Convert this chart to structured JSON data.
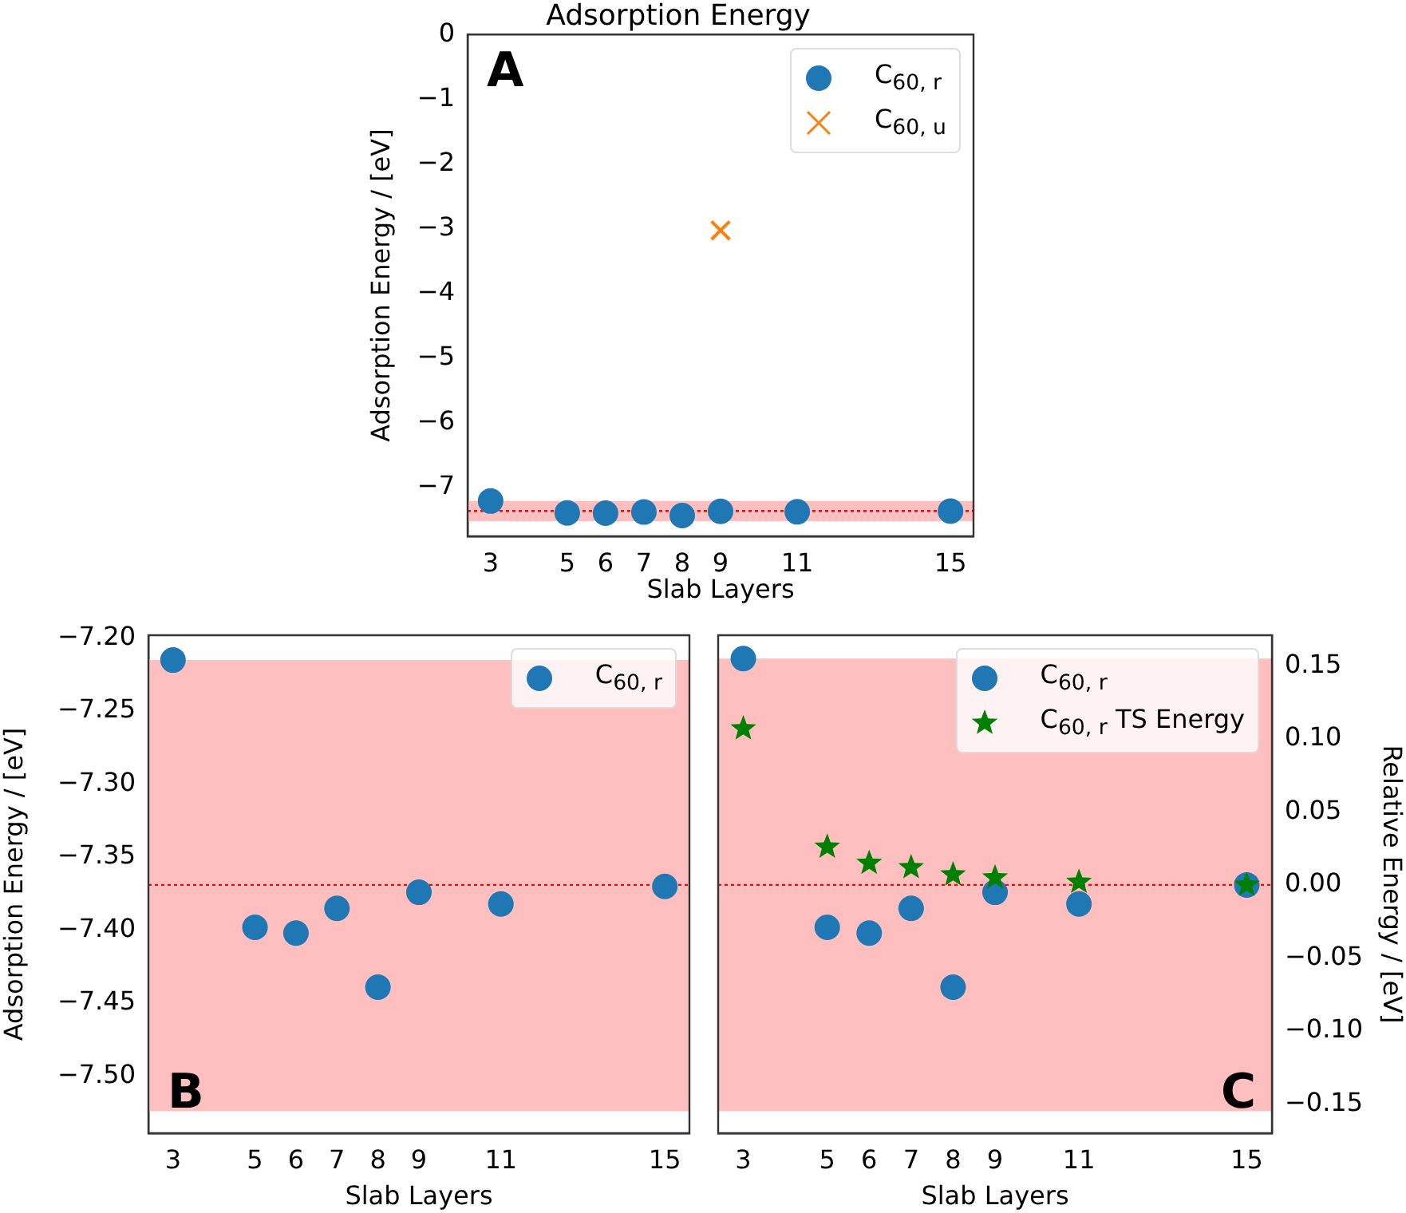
{
  "chart_data": [
    {
      "type": "scatter",
      "title": "Adsorption Energy",
      "xlabel": "Slab Layers",
      "ylabel": "Adsorption Energy / [eV]",
      "annotations": [
        "A"
      ],
      "xlim": [
        2.4,
        15.6
      ],
      "xticks": [
        3,
        5,
        6,
        7,
        8,
        9,
        11,
        15
      ],
      "ylim": [
        -7.76,
        0
      ],
      "yticks": [
        0,
        {
          "value": -1,
          "label": "−1"
        },
        {
          "value": -2,
          "label": "−2"
        },
        {
          "value": -3,
          "label": "−3"
        },
        {
          "value": -4,
          "label": "−4"
        },
        {
          "value": -5,
          "label": "−5"
        },
        {
          "value": -6,
          "label": "−6"
        },
        {
          "value": -7,
          "label": "−7"
        }
      ],
      "series": [
        {
          "name": "C$_{60, r}$",
          "color": "#1f77b4",
          "marker": "circle",
          "x": [
            3,
            5,
            6,
            7,
            8,
            9,
            11,
            15
          ],
          "values": [
            -7.215,
            -7.398,
            -7.402,
            -7.385,
            -7.439,
            -7.374,
            -7.382,
            -7.37
          ]
        },
        {
          "name": "C$_{60, u}$",
          "color": "#ff7f0e",
          "marker": "cross",
          "x": [
            9
          ],
          "values": [
            -3.03
          ]
        }
      ],
      "ref_lines": [
        {
          "axis": "y",
          "value": -7.369,
          "color": "#ff0000",
          "line_style": "dotted"
        }
      ],
      "bands": [
        {
          "axis": "y",
          "from": -7.524,
          "to": -7.215,
          "color": "#ffbfbf"
        }
      ],
      "legend": "top right",
      "grid": false
    },
    {
      "type": "scatter",
      "xlabel": "Slab Layers",
      "ylabel": "Adsorption Energy / [eV]",
      "annotations": [
        "B"
      ],
      "xlim": [
        2.4,
        15.6
      ],
      "xticks": [
        3,
        5,
        6,
        7,
        8,
        9,
        11,
        15
      ],
      "ylim": [
        -7.539,
        -7.198
      ],
      "yticks": [
        {
          "value": -7.2,
          "label": "−7.20"
        },
        {
          "value": -7.25,
          "label": "−7.25"
        },
        {
          "value": -7.3,
          "label": "−7.30"
        },
        {
          "value": -7.35,
          "label": "−7.35"
        },
        {
          "value": -7.4,
          "label": "−7.40"
        },
        {
          "value": -7.45,
          "label": "−7.45"
        },
        {
          "value": -7.5,
          "label": "−7.50"
        }
      ],
      "series": [
        {
          "name": "C$_{60, r}$",
          "color": "#1f77b4",
          "marker": "circle",
          "x": [
            3,
            5,
            6,
            7,
            8,
            9,
            11,
            15
          ],
          "values": [
            -7.215,
            -7.398,
            -7.402,
            -7.385,
            -7.439,
            -7.374,
            -7.382,
            -7.37
          ]
        }
      ],
      "ref_lines": [
        {
          "axis": "y",
          "value": -7.369,
          "color": "#ff0000",
          "line_style": "dotted"
        }
      ],
      "bands": [
        {
          "axis": "y",
          "from": -7.524,
          "to": -7.215,
          "color": "#ffbfbf"
        }
      ],
      "legend": "top right",
      "grid": false
    },
    {
      "type": "scatter",
      "xlabel": "Slab Layers",
      "y2label": "Relative Energy / [eV]",
      "annotations": [
        "C"
      ],
      "xlim": [
        2.4,
        15.6
      ],
      "xticks": [
        3,
        5,
        6,
        7,
        8,
        9,
        11,
        15
      ],
      "y2lim": [
        -0.17,
        0.171
      ],
      "y2ticks": [
        {
          "value": 0.15,
          "label": "0.15"
        },
        {
          "value": 0.1,
          "label": "0.10"
        },
        {
          "value": 0.05,
          "label": "0.05"
        },
        {
          "value": 0,
          "label": "0.00"
        },
        {
          "value": -0.05,
          "label": "−0.05"
        },
        {
          "value": -0.1,
          "label": "−0.10"
        },
        {
          "value": -0.15,
          "label": "−0.15"
        }
      ],
      "series": [
        {
          "name": "C$_{60, r}$",
          "color": "#1f77b4",
          "marker": "circle",
          "axis": "y2",
          "x": [
            3,
            5,
            6,
            7,
            8,
            9,
            11,
            15
          ],
          "values": [
            0.155,
            -0.029,
            -0.033,
            -0.016,
            -0.07,
            -0.005,
            -0.013,
            0.0
          ]
        },
        {
          "name": "C$_{60, r}$ TS Energy",
          "color": "#008000",
          "marker": "star",
          "axis": "y2",
          "x": [
            3,
            5,
            6,
            7,
            8,
            9,
            11,
            15
          ],
          "values": [
            0.107,
            0.026,
            0.015,
            0.012,
            0.007,
            0.005,
            0.002,
            0.0
          ]
        }
      ],
      "ref_lines": [
        {
          "axis": "y2",
          "value": 0,
          "color": "#ff0000",
          "line_style": "dotted"
        }
      ],
      "bands": [
        {
          "axis": "y2",
          "from": -0.155,
          "to": 0.155,
          "color": "#ffbfbf"
        }
      ],
      "legend": "top right",
      "grid": false
    }
  ]
}
